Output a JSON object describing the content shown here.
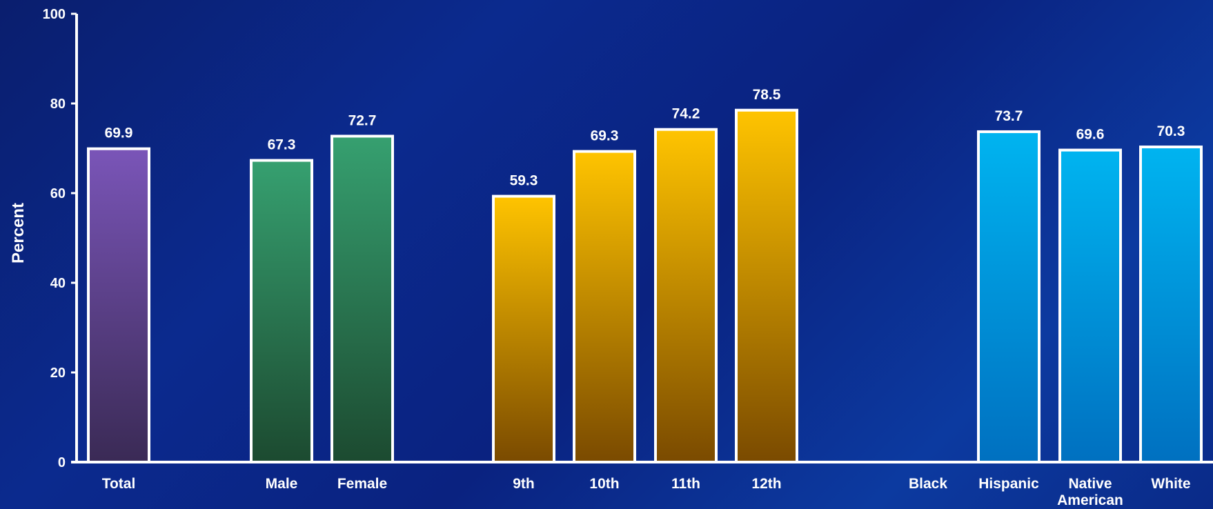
{
  "chart_data": {
    "type": "bar",
    "title": "",
    "ylabel": "Percent",
    "xlabel": "",
    "ylim": [
      0,
      100
    ],
    "yticks": [
      0,
      20,
      40,
      60,
      80,
      100
    ],
    "categories": [
      "Total",
      "Male",
      "Female",
      "9th",
      "10th",
      "11th",
      "12th",
      "Black",
      "Hispanic",
      "Native American",
      "White"
    ],
    "values": [
      69.9,
      67.3,
      72.7,
      59.3,
      69.3,
      74.2,
      78.5,
      null,
      73.7,
      69.6,
      70.3
    ],
    "groups": [
      {
        "categories": [
          "Total"
        ],
        "color_top": "#7a55b8",
        "color_bottom": "#3a2a55"
      },
      {
        "categories": [
          "Male",
          "Female"
        ],
        "color_top": "#36a070",
        "color_bottom": "#1c4a30"
      },
      {
        "categories": [
          "9th",
          "10th",
          "11th",
          "12th"
        ],
        "color_top": "#ffc400",
        "color_bottom": "#7a4a00"
      },
      {
        "categories": [
          "Black",
          "Hispanic",
          "Native American",
          "White"
        ],
        "color_top": "#00b4f0",
        "color_bottom": "#0070c0"
      }
    ],
    "grid": false,
    "legend": "none"
  }
}
